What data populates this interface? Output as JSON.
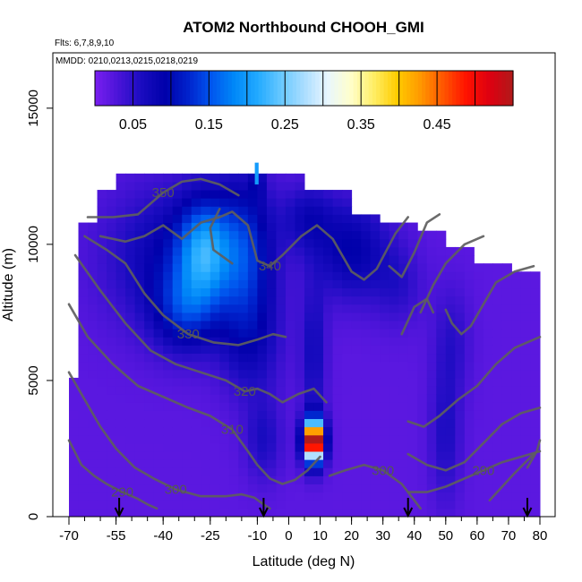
{
  "chart_data": {
    "type": "heatmap",
    "title": "ATOM2 Northbound CHOOH_GMI",
    "flights_label": "Flts: 6,7,8,9,10",
    "dates_label": "MMDD: 0210,0213,0215,0218,0219",
    "xlabel": "Latitude (deg N)",
    "ylabel": "Altitude (m)",
    "xlim": [
      -70,
      80
    ],
    "ylim": [
      0,
      17000
    ],
    "x_ticks": [
      -70,
      -55,
      -40,
      -25,
      -10,
      0,
      10,
      20,
      30,
      40,
      50,
      60,
      70,
      80
    ],
    "y_ticks": [
      0,
      5000,
      10000,
      15000
    ],
    "colorbar": {
      "min": 0.0,
      "max": 0.55,
      "tick_values": [
        0.05,
        0.15,
        0.25,
        0.35,
        0.45
      ],
      "tick_labels": [
        "0.05",
        "0.15",
        "0.25",
        "0.35",
        "0.45"
      ],
      "colors": [
        "#7a1ff0",
        "#4a14d8",
        "#1a0cc0",
        "#0000aa",
        "#0022cc",
        "#0055ee",
        "#0088f8",
        "#22aaff",
        "#66c8ff",
        "#aaddff",
        "#e8f6ff",
        "#ffffcc",
        "#ffee66",
        "#ffcc00",
        "#ff9900",
        "#ff5500",
        "#ff1100",
        "#dd0011",
        "#b01a1a"
      ]
    },
    "arrows_latitude": [
      -54,
      -8,
      38,
      76
    ],
    "theta_contours": [
      {
        "label": "290",
        "points": [
          [
            -70,
            2800
          ],
          [
            -66,
            1900
          ],
          [
            -62,
            1500
          ],
          [
            -58,
            1200
          ],
          [
            -53,
            900
          ],
          [
            -48,
            650
          ],
          [
            -45,
            450
          ],
          [
            -42,
            300
          ]
        ]
      },
      {
        "label": "300",
        "points": [
          [
            -70,
            5300
          ],
          [
            -65,
            4300
          ],
          [
            -60,
            3300
          ],
          [
            -55,
            2500
          ],
          [
            -49,
            1800
          ],
          [
            -43,
            1400
          ],
          [
            -36,
            1000
          ],
          [
            -28,
            750
          ],
          [
            -20,
            750
          ],
          [
            -15,
            820
          ],
          [
            -11,
            700
          ],
          [
            -8,
            450
          ],
          [
            -6,
            300
          ]
        ]
      },
      {
        "label": "310",
        "points": [
          [
            -70,
            7800
          ],
          [
            -64,
            6600
          ],
          [
            -56,
            5600
          ],
          [
            -48,
            4800
          ],
          [
            -40,
            4400
          ],
          [
            -32,
            4000
          ],
          [
            -25,
            3700
          ],
          [
            -18,
            3200
          ],
          [
            -13,
            2400
          ],
          [
            -10,
            1900
          ],
          [
            -6,
            1400
          ],
          [
            -2,
            1200
          ],
          [
            2,
            1350
          ],
          [
            6,
            1700
          ],
          [
            10,
            2200
          ]
        ]
      },
      {
        "label": "320",
        "points": [
          [
            -68,
            9600
          ],
          [
            -60,
            8300
          ],
          [
            -52,
            7100
          ],
          [
            -44,
            6100
          ],
          [
            -36,
            5600
          ],
          [
            -28,
            5300
          ],
          [
            -20,
            5000
          ],
          [
            -14,
            4600
          ],
          [
            -10,
            4700
          ],
          [
            -6,
            4500
          ],
          [
            -2,
            4200
          ],
          [
            3,
            4500
          ],
          [
            8,
            4700
          ],
          [
            12,
            4200
          ]
        ]
      },
      {
        "label": "330",
        "points": [
          [
            -65,
            10300
          ],
          [
            -58,
            9800
          ],
          [
            -52,
            9300
          ],
          [
            -46,
            8200
          ],
          [
            -40,
            7400
          ],
          [
            -32,
            6700
          ],
          [
            -24,
            6400
          ],
          [
            -16,
            6300
          ],
          [
            -10,
            6500
          ],
          [
            -5,
            6700
          ],
          [
            -1,
            6600
          ]
        ]
      },
      {
        "label": "340",
        "points": [
          [
            -60,
            10300
          ],
          [
            -52,
            10100
          ],
          [
            -46,
            10300
          ],
          [
            -40,
            10700
          ],
          [
            -34,
            10200
          ],
          [
            -28,
            10800
          ],
          [
            -22,
            11000
          ],
          [
            -18,
            11200
          ],
          [
            -13,
            10700
          ],
          [
            -10,
            9400
          ],
          [
            -6,
            9200
          ],
          [
            -2,
            9600
          ],
          [
            4,
            10300
          ],
          [
            9,
            10700
          ],
          [
            14,
            10200
          ],
          [
            20,
            9000
          ],
          [
            24,
            8700
          ],
          [
            28,
            9100
          ],
          [
            34,
            10400
          ],
          [
            38,
            11000
          ]
        ]
      },
      {
        "label": "350",
        "points": [
          [
            -64,
            11000
          ],
          [
            -56,
            11000
          ],
          [
            -48,
            11100
          ],
          [
            -44,
            11500
          ],
          [
            -40,
            11900
          ],
          [
            -34,
            12300
          ],
          [
            -28,
            12400
          ],
          [
            -22,
            12200
          ],
          [
            -16,
            11800
          ]
        ]
      },
      {
        "label": "",
        "points": [
          [
            -18,
            9300
          ],
          [
            -24,
            9800
          ],
          [
            -25,
            10600
          ],
          [
            -22,
            11300
          ]
        ]
      },
      {
        "label": "",
        "points": [
          [
            32,
            9200
          ],
          [
            36,
            8800
          ],
          [
            40,
            9700
          ],
          [
            44,
            10800
          ],
          [
            48,
            11100
          ]
        ]
      },
      {
        "label": "",
        "points": [
          [
            42,
            7500
          ],
          [
            46,
            8500
          ],
          [
            50,
            9300
          ],
          [
            56,
            10000
          ],
          [
            62,
            10300
          ]
        ]
      },
      {
        "label": "",
        "points": [
          [
            50,
            7600
          ],
          [
            52,
            7100
          ],
          [
            55,
            6700
          ],
          [
            58,
            7000
          ],
          [
            62,
            7800
          ],
          [
            66,
            8600
          ],
          [
            72,
            9000
          ],
          [
            78,
            9200
          ]
        ]
      },
      {
        "label": "",
        "points": [
          [
            36,
            6700
          ],
          [
            40,
            7700
          ],
          [
            44,
            8000
          ],
          [
            46,
            7500
          ]
        ]
      },
      {
        "label": "",
        "points": [
          [
            38,
            3500
          ],
          [
            43,
            3300
          ],
          [
            48,
            3700
          ],
          [
            54,
            4300
          ],
          [
            60,
            4800
          ],
          [
            66,
            5600
          ],
          [
            72,
            6200
          ],
          [
            80,
            6600
          ]
        ]
      },
      {
        "label": "",
        "points": [
          [
            38,
            2300
          ],
          [
            44,
            1900
          ],
          [
            50,
            1700
          ],
          [
            56,
            2000
          ],
          [
            62,
            2700
          ],
          [
            68,
            3400
          ],
          [
            74,
            3800
          ],
          [
            80,
            4000
          ]
        ]
      },
      {
        "label": "290",
        "points": [
          [
            38,
            900
          ],
          [
            44,
            900
          ],
          [
            50,
            1100
          ],
          [
            56,
            1400
          ],
          [
            62,
            1700
          ],
          [
            68,
            2000
          ],
          [
            74,
            2200
          ],
          [
            80,
            2400
          ]
        ]
      },
      {
        "label": "300",
        "points": [
          [
            13,
            1500
          ],
          [
            18,
            1700
          ],
          [
            24,
            1900
          ],
          [
            30,
            1700
          ],
          [
            36,
            1200
          ],
          [
            40,
            600
          ],
          [
            42,
            300
          ]
        ]
      },
      {
        "label": "",
        "points": [
          [
            64,
            600
          ],
          [
            68,
            1100
          ],
          [
            72,
            1600
          ],
          [
            78,
            2300
          ]
        ]
      },
      {
        "label": "",
        "points": [
          [
            76,
            1800
          ],
          [
            79,
            2400
          ],
          [
            80,
            2800
          ]
        ]
      }
    ]
  }
}
